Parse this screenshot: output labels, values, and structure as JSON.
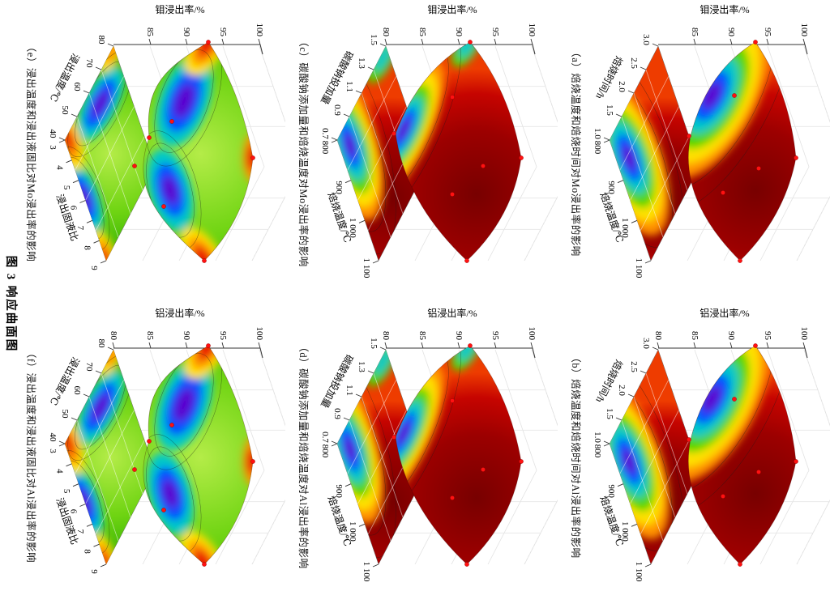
{
  "figure": {
    "title": "图 3  响应曲面图"
  },
  "palette": {
    "low_purple": "#5a00d0",
    "blue": "#0050ff",
    "cyan": "#00c8c8",
    "green": "#52d600",
    "yellow": "#ffe100",
    "orange": "#ff9100",
    "red": "#e80000",
    "dark_red": "#780000",
    "point_red": "#ff1111",
    "grid_gray": "#d9d9d9",
    "axis_black": "#333333"
  },
  "panels": [
    {
      "id": "a",
      "style": "dome",
      "caption": "（a）焙烧温度和焙烧时间对Mo浸出率的影响",
      "z_label": "钼浸出率/%",
      "z_ticks": [
        "85",
        "90",
        "95",
        "100"
      ],
      "axis1_label": "焙烧时间/h",
      "axis1_ticks": [
        "3.0",
        "2.5",
        "2.0",
        "1.5",
        "1.0"
      ],
      "axis2_label": "焙烧温度/℃",
      "axis2_ticks": [
        "800",
        "900",
        "1 000",
        "1 100"
      ]
    },
    {
      "id": "b",
      "style": "dome",
      "caption": "（b）焙烧温度和焙烧时间对Al浸出率的影响",
      "z_label": "铝浸出率/%",
      "z_ticks": [
        "80",
        "85",
        "90",
        "95",
        "100"
      ],
      "axis1_label": "焙烧时间/h",
      "axis1_ticks": [
        "3.0",
        "2.5",
        "2.0",
        "1.5",
        "1.0"
      ],
      "axis2_label": "焙烧温度/℃",
      "axis2_ticks": [
        "800",
        "900",
        "1 000",
        "1 100"
      ]
    },
    {
      "id": "c",
      "style": "tip",
      "caption": "（c）碳酸钠添加量和焙烧温度对Mo浸出率的影响",
      "z_label": "钼浸出率/%",
      "z_ticks": [
        "80",
        "85",
        "90",
        "95",
        "100"
      ],
      "axis1_label": "碳酸钠投加量",
      "axis1_ticks": [
        "1.5",
        "1.3",
        "1.1",
        "0.9",
        "0.7"
      ],
      "axis2_label": "焙烧温度/℃",
      "axis2_ticks": [
        "800",
        "900",
        "1 000",
        "1 100"
      ]
    },
    {
      "id": "d",
      "style": "tip",
      "caption": "（d）碳酸钠添加量和焙烧温度对Al浸出率的影响",
      "z_label": "铝浸出率/%",
      "z_ticks": [
        "80",
        "85",
        "90",
        "95",
        "100"
      ],
      "axis1_label": "碳酸钠投加量",
      "axis1_ticks": [
        "1.5",
        "1.3",
        "1.1",
        "0.9",
        "0.7"
      ],
      "axis2_label": "焙烧温度/℃",
      "axis2_ticks": [
        "800",
        "900",
        "1 000",
        "1 100"
      ]
    },
    {
      "id": "e",
      "style": "saddle",
      "caption": "（e）浸出温度和浸出液固比对Mo浸出率的影响",
      "z_label": "钼浸出率/%",
      "z_ticks": [
        "85",
        "90",
        "95",
        "100"
      ],
      "axis1_label": "浸出温度/℃",
      "axis1_ticks": [
        "80",
        "70",
        "60",
        "50",
        "40"
      ],
      "axis2_label": "浸出固液比",
      "axis2_ticks": [
        "3",
        "4",
        "5",
        "6",
        "7",
        "8",
        "9"
      ]
    },
    {
      "id": "f",
      "style": "saddle",
      "caption": "（f）浸出温度和浸出液固比对Al浸出率的影响",
      "z_label": "铝浸出率/%",
      "z_ticks": [
        "80",
        "85",
        "90",
        "95",
        "100"
      ],
      "axis1_label": "浸出温度/℃",
      "axis1_ticks": [
        "80",
        "70",
        "60",
        "50",
        "40"
      ],
      "axis2_label": "浸出固液比",
      "axis2_ticks": [
        "3",
        "4",
        "5",
        "6",
        "7",
        "8",
        "9"
      ]
    }
  ],
  "chart_data": [
    {
      "panel": "a",
      "type": "surface3d_with_contour_projection",
      "title": "焙烧温度和焙烧时间对Mo浸出率的影响",
      "x": {
        "label": "焙烧温度/℃",
        "ticks": [
          800,
          900,
          1000,
          1100
        ],
        "range": [
          800,
          1100
        ]
      },
      "y": {
        "label": "焙烧时间/h",
        "ticks": [
          3.0,
          2.5,
          2.0,
          1.5,
          1.0
        ],
        "range": [
          1.0,
          3.0
        ]
      },
      "z": {
        "label": "钼浸出率/%",
        "ticks": [
          85,
          90,
          95,
          100
        ],
        "range": [
          83,
          100
        ]
      },
      "colormap": "rainbow (purple=low, dark red=high)",
      "surface_summary": "Mo leach rate rises steeply with roasting temperature; minimum ≈84% near 800–870 ℃ at short roasting time, plateau ≈95–97% above ≈950 ℃ for all times",
      "z_corners_approx": {
        "800C_1.0h": 84,
        "1100C_1.0h": 93,
        "800C_3.0h": 93,
        "1100C_3.0h": 96
      },
      "markers": "red experimental design points on surface",
      "projection": "filled rainbow contour with blue/purple basin near 800 ℃ & 1.0 h"
    },
    {
      "panel": "b",
      "type": "surface3d_with_contour_projection",
      "title": "焙烧温度和焙烧时间对Al浸出率的影响",
      "x": {
        "label": "焙烧温度/℃",
        "ticks": [
          800,
          900,
          1000,
          1100
        ],
        "range": [
          800,
          1100
        ]
      },
      "y": {
        "label": "焙烧时间/h",
        "ticks": [
          3.0,
          2.5,
          2.0,
          1.5,
          1.0
        ],
        "range": [
          1.0,
          3.0
        ]
      },
      "z": {
        "label": "铝浸出率/%",
        "ticks": [
          80,
          85,
          90,
          95,
          100
        ],
        "range": [
          80,
          100
        ]
      },
      "colormap": "rainbow (purple=low, dark red=high)",
      "surface_summary": "Al leach rate minimum ≈81% near 800–880 ℃ at short time; rises to ≈95–97% plateau at higher temperature and time",
      "z_corners_approx": {
        "800C_1.0h": 81,
        "1100C_1.0h": 93,
        "800C_3.0h": 92,
        "1100C_3.0h": 96
      },
      "markers": "red experimental design points on surface",
      "projection": "filled rainbow contour with blue/purple basin near 800 ℃ & 1.0 h"
    },
    {
      "panel": "c",
      "type": "surface3d_with_contour_projection",
      "title": "碳酸钠添加量和焙烧温度对Mo浸出率的影响",
      "x": {
        "label": "焙烧温度/℃",
        "ticks": [
          800,
          900,
          1000,
          1100
        ],
        "range": [
          800,
          1100
        ]
      },
      "y": {
        "label": "碳酸钠投加量",
        "ticks": [
          1.5,
          1.3,
          1.1,
          0.9,
          0.7
        ],
        "range": [
          0.7,
          1.5
        ]
      },
      "z": {
        "label": "钼浸出率/%",
        "ticks": [
          80,
          85,
          90,
          95,
          100
        ],
        "range": [
          80,
          100
        ]
      },
      "colormap": "rainbow (purple=low, dark red=high)",
      "surface_summary": "Broad dark-red maximum ≈95–97% at mid dosage (≈1.0–1.3) and ≥900 ℃; sharp purple minimum ≈80% at 800 ℃ with 0.7 dosage; green tip ≈90% at dosage 1.5",
      "z_corners_approx": {
        "800C_0.7": 80,
        "1100C_0.7": 94,
        "800C_1.5": 90,
        "1100C_1.5": 94
      },
      "markers": "red experimental design points on surface",
      "projection": "filled rainbow contour, purple corner at 800 ℃ & 0.7, cyan tip at dosage 1.5"
    },
    {
      "panel": "d",
      "type": "surface3d_with_contour_projection",
      "title": "碳酸钠添加量和焙烧温度对Al浸出率的影响",
      "x": {
        "label": "焙烧温度/℃",
        "ticks": [
          800,
          900,
          1000,
          1100
        ],
        "range": [
          800,
          1100
        ]
      },
      "y": {
        "label": "碳酸钠投加量",
        "ticks": [
          1.5,
          1.3,
          1.1,
          0.9,
          0.7
        ],
        "range": [
          0.7,
          1.5
        ]
      },
      "z": {
        "label": "铝浸出率/%",
        "ticks": [
          80,
          85,
          90,
          95,
          100
        ],
        "range": [
          80,
          100
        ]
      },
      "colormap": "rainbow (purple=low, dark red=high)",
      "surface_summary": "Broad dark-red maximum ≈94–96% at mid dosage and high temperature; purple minimum ≈80% at 800 ℃ with 0.7 dosage; thin green edge at dosage 1.5",
      "z_corners_approx": {
        "800C_0.7": 80,
        "1100C_0.7": 93,
        "800C_1.5": 88,
        "1100C_1.5": 93
      },
      "markers": "red experimental design points on surface",
      "projection": "filled rainbow contour, purple corner at 800 ℃ & 0.7, cyan tip at dosage 1.5"
    },
    {
      "panel": "e",
      "type": "surface3d_with_contour_projection",
      "title": "浸出温度和浸出液固比对Mo浸出率的影响",
      "x": {
        "label": "浸出固液比",
        "ticks": [
          3,
          4,
          5,
          6,
          7,
          8,
          9
        ],
        "range": [
          3,
          9
        ]
      },
      "y": {
        "label": "浸出温度/℃",
        "ticks": [
          80,
          70,
          60,
          50,
          40
        ],
        "range": [
          40,
          80
        ]
      },
      "z": {
        "label": "钼浸出率/%",
        "ticks": [
          85,
          90,
          95,
          100
        ],
        "range": [
          85,
          100
        ]
      },
      "colormap": "rainbow (purple=low, dark red=high)",
      "surface_summary": "Saddle-shaped: red maxima ≈95–96% at ratio 3 (both 40 and 80 ℃) and at ratio 9; blue/purple minima ≈86–87% around 50–60 ℃ and around ratio 7–8; green mid-field ≈90–92%",
      "z_corners_approx": {
        "ratio3_40C": 95,
        "ratio9_40C": 93,
        "ratio3_80C": 95,
        "ratio9_80C": 92
      },
      "markers": "red experimental design points on surface",
      "projection": "filled rainbow contour with two purple basins (≈55 ℃ and ratio ≈7.5) and red tips at the corners"
    },
    {
      "panel": "f",
      "type": "surface3d_with_contour_projection",
      "title": "浸出温度和浸出液固比对Al浸出率的影响",
      "x": {
        "label": "浸出固液比",
        "ticks": [
          3,
          4,
          5,
          6,
          7,
          8,
          9
        ],
        "range": [
          3,
          9
        ]
      },
      "y": {
        "label": "浸出温度/℃",
        "ticks": [
          80,
          70,
          60,
          50,
          40
        ],
        "range": [
          40,
          80
        ]
      },
      "z": {
        "label": "铝浸出率/%",
        "ticks": [
          80,
          85,
          90,
          95,
          100
        ],
        "range": [
          80,
          100
        ]
      },
      "colormap": "rainbow (purple=low, dark red=high)",
      "surface_summary": "Saddle-shaped: red maxima ≈95% at ratio 3 and at low ratio/high temperature corners; blue/purple minima ≈85–86% around 50–60 ℃ and around ratio 7–8; green mid-field ≈90%",
      "z_corners_approx": {
        "ratio3_40C": 95,
        "ratio9_40C": 92,
        "ratio3_80C": 94,
        "ratio9_80C": 91
      },
      "markers": "red experimental design points on surface",
      "projection": "filled rainbow contour with two purple basins and red corner tips"
    }
  ]
}
